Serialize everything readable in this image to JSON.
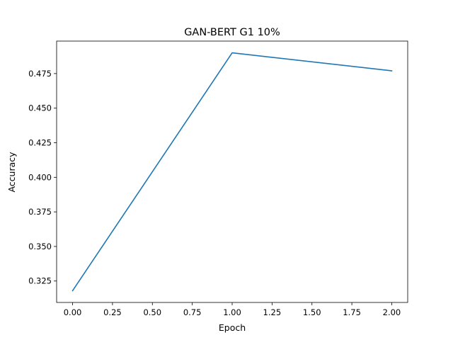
{
  "chart_data": {
    "type": "line",
    "title": "GAN-BERT G1 10%",
    "xlabel": "Epoch",
    "ylabel": "Accuracy",
    "xlim": [
      -0.1,
      2.1
    ],
    "ylim": [
      0.3095,
      0.4985
    ],
    "x_ticks": [
      0.0,
      0.25,
      0.5,
      0.75,
      1.0,
      1.25,
      1.5,
      1.75,
      2.0
    ],
    "x_tick_labels": [
      "0.00",
      "0.25",
      "0.50",
      "0.75",
      "1.00",
      "1.25",
      "1.50",
      "1.75",
      "2.00"
    ],
    "y_ticks": [
      0.325,
      0.35,
      0.375,
      0.4,
      0.425,
      0.45,
      0.475
    ],
    "y_tick_labels": [
      "0.325",
      "0.350",
      "0.375",
      "0.400",
      "0.425",
      "0.450",
      "0.475"
    ],
    "grid": false,
    "series": [
      {
        "x": [
          0,
          1,
          2
        ],
        "values": [
          0.318,
          0.49,
          0.477
        ],
        "color": "#1f77b4"
      }
    ]
  }
}
